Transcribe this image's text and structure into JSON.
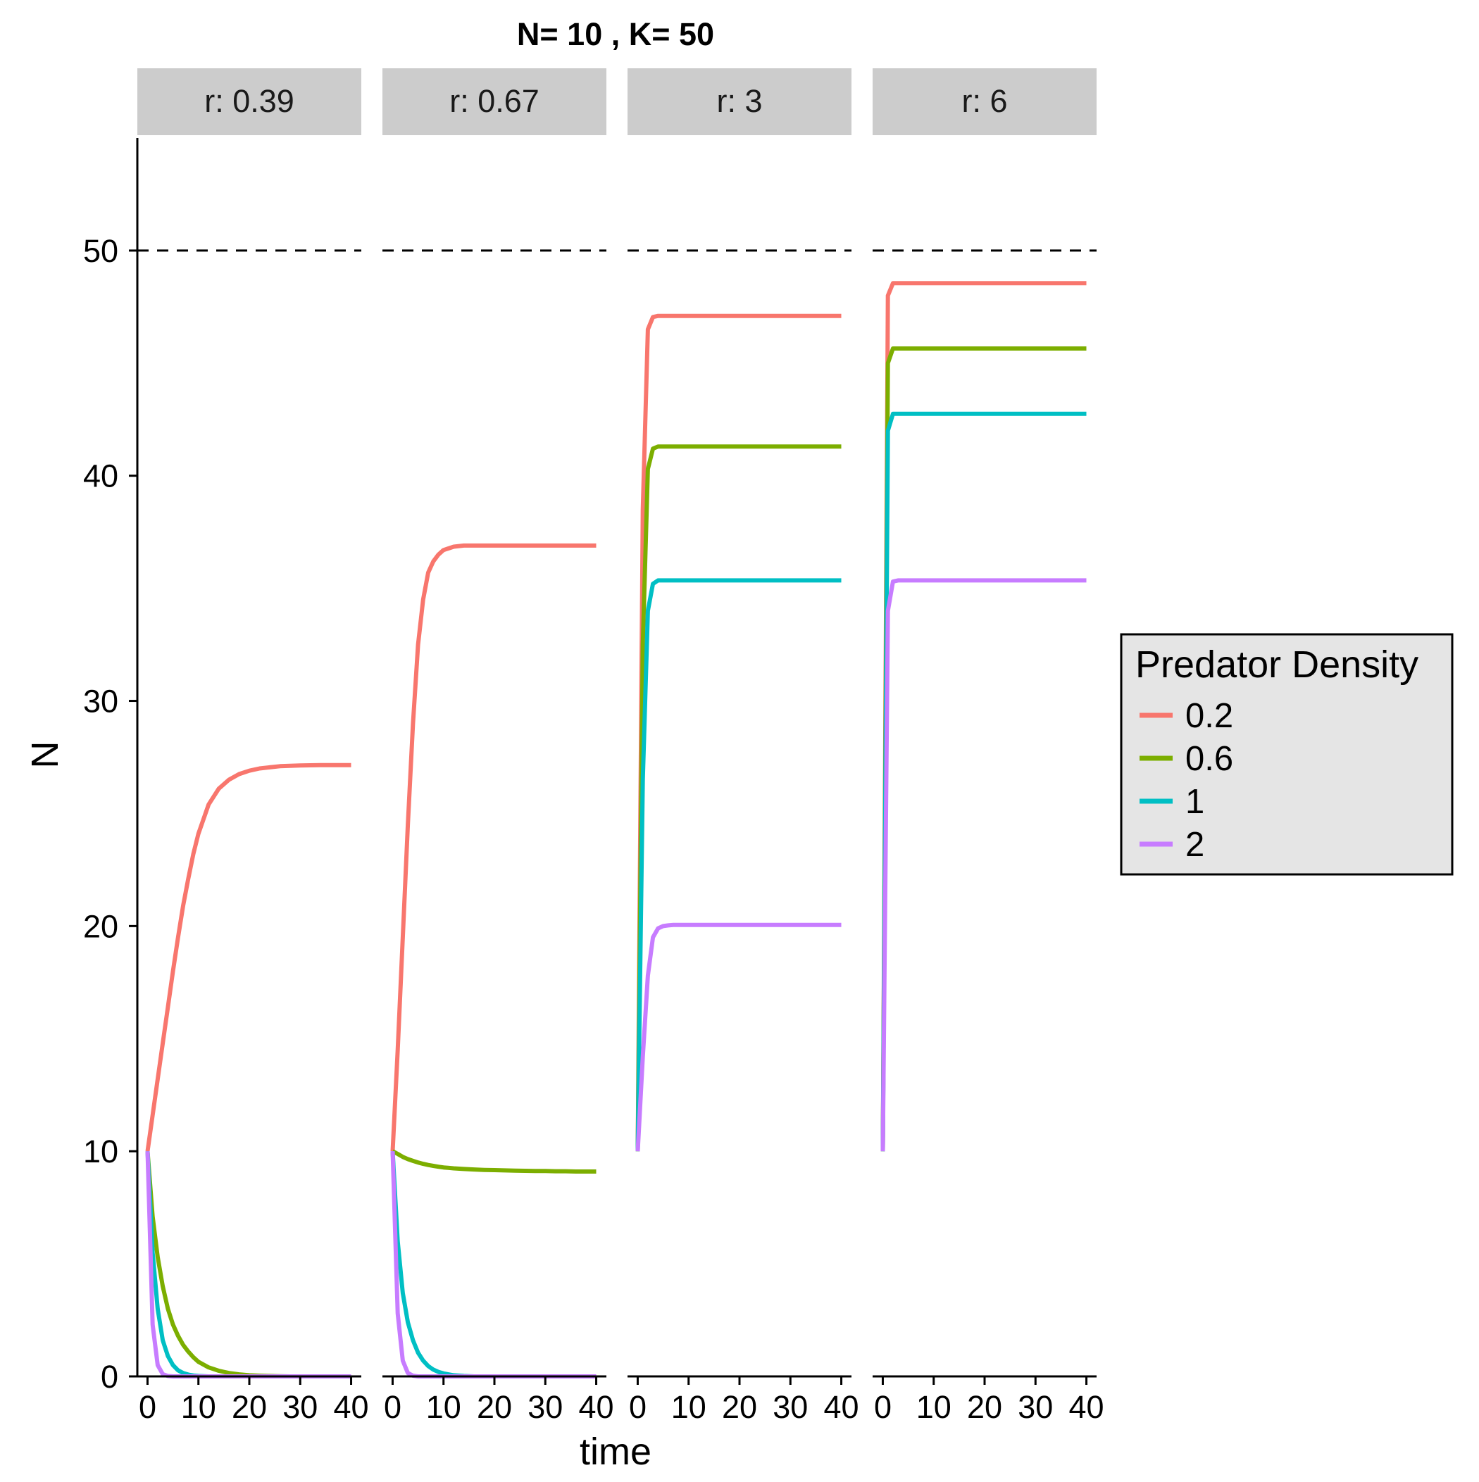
{
  "chart_data": {
    "type": "line",
    "title": "N= 10 , K= 50",
    "xlabel": "time",
    "ylabel": "N",
    "xlim": [
      -2,
      42
    ],
    "ylim": [
      0,
      55
    ],
    "xticks": [
      0,
      10,
      20,
      30,
      40
    ],
    "yticks": [
      0,
      10,
      20,
      30,
      40,
      50
    ],
    "x_tick_labels": [
      "0",
      "10",
      "20",
      "30",
      "40"
    ],
    "y_tick_labels": [
      "0",
      "10",
      "20",
      "30",
      "40",
      "50"
    ],
    "reference_line": {
      "y": 50,
      "style": "dashed",
      "color": "#000000"
    },
    "grid": false,
    "legend": {
      "title": "Predator Density",
      "placement": "right",
      "entries": [
        "0.2",
        "0.6",
        "1",
        "2"
      ]
    },
    "series_colors": {
      "0.2": "#F8766D",
      "0.6": "#7CAE00",
      "1": "#00BFC4",
      "2": "#C77CFF"
    },
    "x": [
      0,
      1,
      2,
      3,
      4,
      5,
      6,
      7,
      8,
      9,
      10,
      12,
      14,
      16,
      18,
      20,
      22,
      24,
      26,
      28,
      30,
      32,
      34,
      36,
      38,
      40
    ],
    "panels": [
      {
        "strip": "r: 0.39",
        "series": [
          {
            "name": "0.2",
            "values": [
              10,
              11.6,
              13.2,
              14.8,
              16.4,
              18,
              19.5,
              20.9,
              22.1,
              23.2,
              24.1,
              25.4,
              26.1,
              26.5,
              26.75,
              26.9,
              27.0,
              27.05,
              27.1,
              27.12,
              27.13,
              27.14,
              27.15,
              27.15,
              27.15,
              27.15
            ]
          },
          {
            "name": "0.6",
            "values": [
              10,
              7.1,
              5.3,
              4.0,
              3.0,
              2.3,
              1.8,
              1.4,
              1.1,
              0.85,
              0.65,
              0.4,
              0.25,
              0.15,
              0.09,
              0.05,
              0.03,
              0.02,
              0.01,
              0.0,
              0.0,
              0.0,
              0.0,
              0.0,
              0.0,
              0.0
            ]
          },
          {
            "name": "1",
            "values": [
              10,
              5.5,
              3.0,
              1.6,
              0.9,
              0.5,
              0.27,
              0.15,
              0.08,
              0.04,
              0.02,
              0.0,
              0.0,
              0.0,
              0.0,
              0.0,
              0.0,
              0.0,
              0.0,
              0.0,
              0.0,
              0.0,
              0.0,
              0.0,
              0.0,
              0.0
            ]
          },
          {
            "name": "2",
            "values": [
              10,
              2.3,
              0.5,
              0.1,
              0.02,
              0.0,
              0.0,
              0.0,
              0.0,
              0.0,
              0.0,
              0.0,
              0.0,
              0.0,
              0.0,
              0.0,
              0.0,
              0.0,
              0.0,
              0.0,
              0.0,
              0.0,
              0.0,
              0.0,
              0.0,
              0.0
            ]
          }
        ]
      },
      {
        "strip": "r: 0.67",
        "series": [
          {
            "name": "0.2",
            "values": [
              10,
              14.5,
              19.5,
              24.5,
              29,
              32.5,
              34.5,
              35.7,
              36.2,
              36.5,
              36.7,
              36.85,
              36.9,
              36.9,
              36.9,
              36.9,
              36.9,
              36.9,
              36.9,
              36.9,
              36.9,
              36.9,
              36.9,
              36.9,
              36.9,
              36.9
            ]
          },
          {
            "name": "0.6",
            "values": [
              10,
              9.88,
              9.75,
              9.65,
              9.57,
              9.5,
              9.44,
              9.39,
              9.35,
              9.31,
              9.28,
              9.24,
              9.21,
              9.19,
              9.17,
              9.16,
              9.15,
              9.14,
              9.13,
              9.12,
              9.12,
              9.11,
              9.11,
              9.1,
              9.1,
              9.1
            ]
          },
          {
            "name": "1",
            "values": [
              10,
              6.0,
              3.7,
              2.4,
              1.6,
              1.05,
              0.7,
              0.46,
              0.3,
              0.2,
              0.13,
              0.05,
              0.02,
              0.0,
              0.0,
              0.0,
              0.0,
              0.0,
              0.0,
              0.0,
              0.0,
              0.0,
              0.0,
              0.0,
              0.0,
              0.0
            ]
          },
          {
            "name": "2",
            "values": [
              10,
              2.8,
              0.7,
              0.15,
              0.03,
              0.0,
              0.0,
              0.0,
              0.0,
              0.0,
              0.0,
              0.0,
              0.0,
              0.0,
              0.0,
              0.0,
              0.0,
              0.0,
              0.0,
              0.0,
              0.0,
              0.0,
              0.0,
              0.0,
              0.0,
              0.0
            ]
          }
        ]
      },
      {
        "strip": "r: 3",
        "series": [
          {
            "name": "0.2",
            "values": [
              10,
              38.5,
              46.5,
              47.05,
              47.1,
              47.1,
              47.1,
              47.1,
              47.1,
              47.1,
              47.1,
              47.1,
              47.1,
              47.1,
              47.1,
              47.1,
              47.1,
              47.1,
              47.1,
              47.1,
              47.1,
              47.1,
              47.1,
              47.1,
              47.1,
              47.1
            ]
          },
          {
            "name": "0.6",
            "values": [
              10,
              32.5,
              40.3,
              41.2,
              41.3,
              41.3,
              41.3,
              41.3,
              41.3,
              41.3,
              41.3,
              41.3,
              41.3,
              41.3,
              41.3,
              41.3,
              41.3,
              41.3,
              41.3,
              41.3,
              41.3,
              41.3,
              41.3,
              41.3,
              41.3,
              41.3
            ]
          },
          {
            "name": "1",
            "values": [
              10,
              26.5,
              34.0,
              35.2,
              35.35,
              35.35,
              35.35,
              35.35,
              35.35,
              35.35,
              35.35,
              35.35,
              35.35,
              35.35,
              35.35,
              35.35,
              35.35,
              35.35,
              35.35,
              35.35,
              35.35,
              35.35,
              35.35,
              35.35,
              35.35,
              35.35
            ]
          },
          {
            "name": "2",
            "values": [
              10,
              14.2,
              17.8,
              19.5,
              19.9,
              20.0,
              20.03,
              20.05,
              20.05,
              20.05,
              20.05,
              20.05,
              20.05,
              20.05,
              20.05,
              20.05,
              20.05,
              20.05,
              20.05,
              20.05,
              20.05,
              20.05,
              20.05,
              20.05,
              20.05,
              20.05
            ]
          }
        ]
      },
      {
        "strip": "r: 6",
        "series": [
          {
            "name": "0.2",
            "values": [
              10,
              48.0,
              48.55,
              48.55,
              48.55,
              48.55,
              48.55,
              48.55,
              48.55,
              48.55,
              48.55,
              48.55,
              48.55,
              48.55,
              48.55,
              48.55,
              48.55,
              48.55,
              48.55,
              48.55,
              48.55,
              48.55,
              48.55,
              48.55,
              48.55,
              48.55
            ]
          },
          {
            "name": "0.6",
            "values": [
              10,
              45.0,
              45.65,
              45.65,
              45.65,
              45.65,
              45.65,
              45.65,
              45.65,
              45.65,
              45.65,
              45.65,
              45.65,
              45.65,
              45.65,
              45.65,
              45.65,
              45.65,
              45.65,
              45.65,
              45.65,
              45.65,
              45.65,
              45.65,
              45.65,
              45.65
            ]
          },
          {
            "name": "1",
            "values": [
              10,
              42.0,
              42.75,
              42.75,
              42.75,
              42.75,
              42.75,
              42.75,
              42.75,
              42.75,
              42.75,
              42.75,
              42.75,
              42.75,
              42.75,
              42.75,
              42.75,
              42.75,
              42.75,
              42.75,
              42.75,
              42.75,
              42.75,
              42.75,
              42.75,
              42.75
            ]
          },
          {
            "name": "2",
            "values": [
              10,
              34.0,
              35.3,
              35.35,
              35.35,
              35.35,
              35.35,
              35.35,
              35.35,
              35.35,
              35.35,
              35.35,
              35.35,
              35.35,
              35.35,
              35.35,
              35.35,
              35.35,
              35.35,
              35.35,
              35.35,
              35.35,
              35.35,
              35.35,
              35.35,
              35.35
            ]
          }
        ]
      }
    ]
  }
}
